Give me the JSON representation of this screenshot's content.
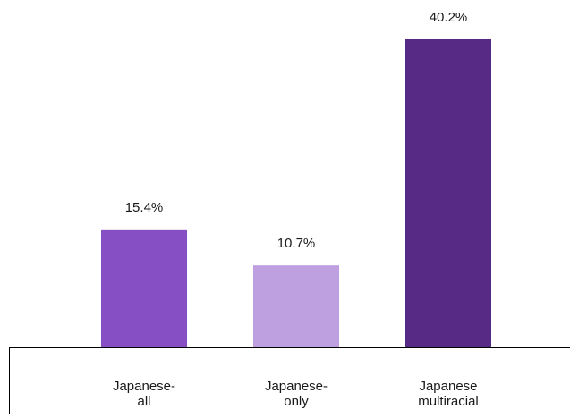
{
  "chart_data": {
    "type": "bar",
    "title": "",
    "xlabel": "",
    "ylabel": "",
    "categories": [
      [
        "Japanese-",
        "all"
      ],
      [
        "Japanese-",
        "only"
      ],
      [
        "Japanese",
        "multiracial"
      ]
    ],
    "values": [
      15.4,
      10.7,
      40.2
    ],
    "value_labels": [
      "15.4%",
      "10.7%",
      "40.2%"
    ],
    "bar_colors": [
      "#8650c4",
      "#bea0e0",
      "#572a85"
    ],
    "ylim": [
      0,
      40.2
    ],
    "grid": false,
    "legend": "none"
  }
}
